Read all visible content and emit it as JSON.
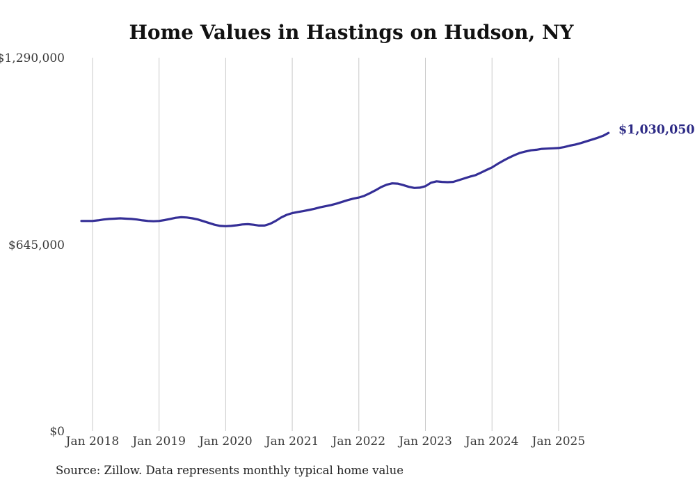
{
  "footer": {
    "source": "Source: Zillow. Data represents monthly typical home value"
  },
  "chart_data": {
    "type": "line",
    "title": "Home Values in Hastings on Hudson, NY",
    "xlabel": "",
    "ylabel": "",
    "ylim": [
      0,
      1290000
    ],
    "grid": "vertical-only",
    "line_color": "#342e96",
    "grid_color": "#c9c9c9",
    "end_label": "$1,030,050",
    "end_label_color": "#2d2a85",
    "yticks": [
      {
        "value": 0,
        "label": "$0"
      },
      {
        "value": 645000,
        "label": "$645,000"
      },
      {
        "value": 1290000,
        "label": "$1,290,000"
      }
    ],
    "xticks": [
      "Jan 2018",
      "Jan 2019",
      "Jan 2020",
      "Jan 2021",
      "Jan 2022",
      "Jan 2023",
      "Jan 2024",
      "Jan 2025"
    ],
    "x": [
      "Nov 2017",
      "Dec 2017",
      "Jan 2018",
      "Feb 2018",
      "Mar 2018",
      "Apr 2018",
      "May 2018",
      "Jun 2018",
      "Jul 2018",
      "Aug 2018",
      "Sep 2018",
      "Oct 2018",
      "Nov 2018",
      "Dec 2018",
      "Jan 2019",
      "Feb 2019",
      "Mar 2019",
      "Apr 2019",
      "May 2019",
      "Jun 2019",
      "Jul 2019",
      "Aug 2019",
      "Sep 2019",
      "Oct 2019",
      "Nov 2019",
      "Dec 2019",
      "Jan 2020",
      "Feb 2020",
      "Mar 2020",
      "Apr 2020",
      "May 2020",
      "Jun 2020",
      "Jul 2020",
      "Aug 2020",
      "Sep 2020",
      "Oct 2020",
      "Nov 2020",
      "Dec 2020",
      "Jan 2021",
      "Feb 2021",
      "Mar 2021",
      "Apr 2021",
      "May 2021",
      "Jun 2021",
      "Jul 2021",
      "Aug 2021",
      "Sep 2021",
      "Oct 2021",
      "Nov 2021",
      "Dec 2021",
      "Jan 2022",
      "Feb 2022",
      "Mar 2022",
      "Apr 2022",
      "May 2022",
      "Jun 2022",
      "Jul 2022",
      "Aug 2022",
      "Sep 2022",
      "Oct 2022",
      "Nov 2022",
      "Dec 2022",
      "Jan 2023",
      "Feb 2023",
      "Mar 2023",
      "Apr 2023",
      "May 2023",
      "Jun 2023",
      "Jul 2023",
      "Aug 2023",
      "Sep 2023",
      "Oct 2023",
      "Nov 2023",
      "Dec 2023",
      "Jan 2024",
      "Feb 2024",
      "Mar 2024",
      "Apr 2024",
      "May 2024",
      "Jun 2024",
      "Jul 2024",
      "Aug 2024",
      "Sep 2024",
      "Oct 2024",
      "Nov 2024",
      "Dec 2024",
      "Jan 2025",
      "Feb 2025",
      "Mar 2025",
      "Apr 2025",
      "May 2025",
      "Jun 2025",
      "Jul 2025",
      "Aug 2025",
      "Sep 2025",
      "Oct 2025"
    ],
    "values": [
      726000,
      726000,
      726000,
      728000,
      731000,
      733000,
      734000,
      735000,
      734000,
      733000,
      731000,
      728000,
      726000,
      725000,
      726000,
      729000,
      733000,
      737000,
      739000,
      738000,
      735000,
      731000,
      725000,
      719000,
      713000,
      709000,
      708000,
      709000,
      711000,
      714000,
      715000,
      713000,
      710000,
      710000,
      716000,
      726000,
      738000,
      747000,
      753000,
      757000,
      760000,
      764000,
      768000,
      773000,
      777000,
      781000,
      786000,
      792000,
      798000,
      803000,
      807000,
      813000,
      822000,
      832000,
      843000,
      851000,
      856000,
      855000,
      850000,
      844000,
      840000,
      841000,
      846000,
      858000,
      863000,
      861000,
      860000,
      861000,
      867000,
      873000,
      879000,
      884000,
      893000,
      902000,
      911000,
      923000,
      934000,
      944000,
      953000,
      961000,
      966000,
      970000,
      972000,
      975000,
      976000,
      977000,
      978000,
      981000,
      986000,
      990000,
      995000,
      1001000,
      1007000,
      1013000,
      1020000,
      1030050
    ]
  }
}
